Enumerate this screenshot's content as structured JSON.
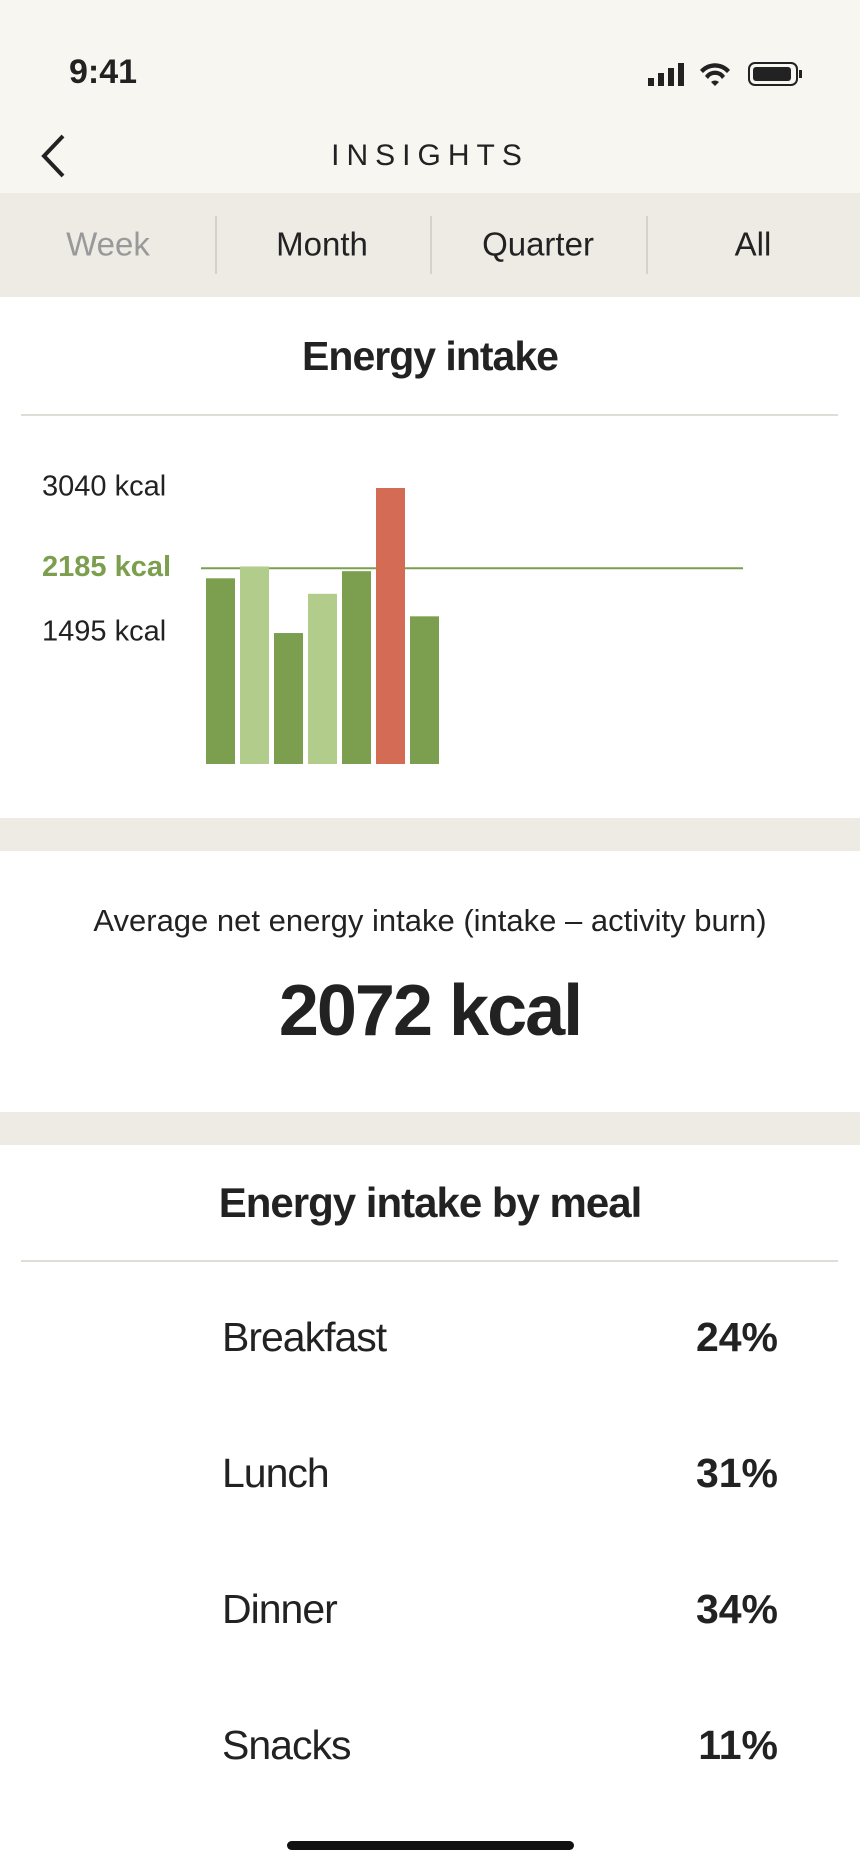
{
  "status_bar": {
    "time": "9:41"
  },
  "header": {
    "title": "INSIGHTS"
  },
  "tabs": [
    "Week",
    "Month",
    "Quarter",
    "All"
  ],
  "chart_data": {
    "type": "bar",
    "title": "Energy intake",
    "categories": [
      null,
      null,
      null,
      null,
      null,
      null,
      null
    ],
    "values": [
      2078,
      2204,
      1495,
      1913,
      2154,
      3040,
      1673
    ],
    "colors": [
      "#7c9f4f",
      "#b1cc8b",
      "#7c9f4f",
      "#b1cc8b",
      "#7c9f4f",
      "#d46c55",
      "#7c9f4f"
    ],
    "ylim": [
      100,
      3040
    ],
    "yticks": [
      {
        "value": 3040,
        "label": "3040 kcal"
      },
      {
        "value": 2185,
        "label": "2185 kcal",
        "color": "#7c9f4f",
        "line": true
      },
      {
        "value": 1495,
        "label": "1495 kcal"
      }
    ]
  },
  "summary": {
    "label": "Average net energy intake (intake – activity burn)",
    "value": "2072 kcal"
  },
  "meals": {
    "title": "Energy intake by meal",
    "rows": [
      [
        "Breakfast",
        "24%"
      ],
      [
        "Lunch",
        "31%"
      ],
      [
        "Dinner",
        "34%"
      ],
      [
        "Snacks",
        "11%"
      ]
    ]
  }
}
